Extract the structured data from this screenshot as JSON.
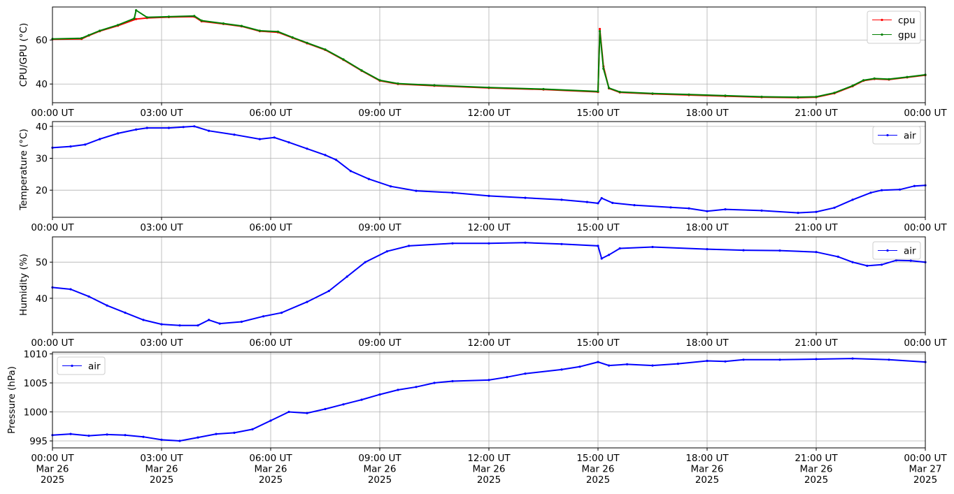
{
  "chart_data": [
    {
      "type": "line",
      "ylabel": "CPU/GPU (°C)",
      "ylim": [
        31.5,
        75
      ],
      "yticks": [
        40,
        60
      ],
      "xlim_hours": [
        0,
        24
      ],
      "xtick_labels": [
        "00:00 UT",
        "03:00 UT",
        "06:00 UT",
        "09:00 UT",
        "12:00 UT",
        "15:00 UT",
        "18:00 UT",
        "21:00 UT",
        "00:00 UT"
      ],
      "grid": true,
      "legend_position": "top-right",
      "series": [
        {
          "name": "cpu",
          "color": "#ff0000",
          "points": [
            [
              0,
              60.3
            ],
            [
              0.8,
              60.5
            ],
            [
              1.0,
              62
            ],
            [
              1.3,
              64
            ],
            [
              1.8,
              66.5
            ],
            [
              2.3,
              69.5
            ],
            [
              2.6,
              70
            ],
            [
              3.2,
              70.4
            ],
            [
              3.9,
              70.6
            ],
            [
              4.1,
              68.5
            ],
            [
              4.7,
              67.3
            ],
            [
              5.2,
              66.2
            ],
            [
              5.7,
              64
            ],
            [
              6.2,
              63.5
            ],
            [
              6.6,
              61
            ],
            [
              7.0,
              58.5
            ],
            [
              7.5,
              55.5
            ],
            [
              8.0,
              51
            ],
            [
              8.5,
              46
            ],
            [
              9.0,
              41.5
            ],
            [
              9.5,
              40
            ],
            [
              10.5,
              39.2
            ],
            [
              12,
              38.2
            ],
            [
              13.5,
              37.5
            ],
            [
              15.0,
              36.4
            ],
            [
              15.05,
              65
            ],
            [
              15.15,
              48
            ],
            [
              15.3,
              38
            ],
            [
              15.6,
              36.2
            ],
            [
              16.5,
              35.5
            ],
            [
              17.5,
              35
            ],
            [
              18.5,
              34.5
            ],
            [
              19.5,
              34
            ],
            [
              20.5,
              33.8
            ],
            [
              21.0,
              34
            ],
            [
              21.5,
              35.8
            ],
            [
              22.0,
              39
            ],
            [
              22.3,
              41.5
            ],
            [
              22.6,
              42.3
            ],
            [
              23.0,
              42
            ],
            [
              23.5,
              43
            ],
            [
              24.0,
              44
            ]
          ]
        },
        {
          "name": "gpu",
          "color": "#008000",
          "points": [
            [
              0,
              60.5
            ],
            [
              0.8,
              60.8
            ],
            [
              1.0,
              62.2
            ],
            [
              1.3,
              64.2
            ],
            [
              1.8,
              66.8
            ],
            [
              2.25,
              69.8
            ],
            [
              2.3,
              73.5
            ],
            [
              2.6,
              70.3
            ],
            [
              3.2,
              70.6
            ],
            [
              3.9,
              70.9
            ],
            [
              4.1,
              68.8
            ],
            [
              4.7,
              67.5
            ],
            [
              5.2,
              66.4
            ],
            [
              5.7,
              64.2
            ],
            [
              6.2,
              63.8
            ],
            [
              6.6,
              61.2
            ],
            [
              7.0,
              58.7
            ],
            [
              7.5,
              55.7
            ],
            [
              8.0,
              51.2
            ],
            [
              8.5,
              46.2
            ],
            [
              9.0,
              41.7
            ],
            [
              9.5,
              40.2
            ],
            [
              10.5,
              39.4
            ],
            [
              12,
              38.4
            ],
            [
              13.5,
              37.7
            ],
            [
              15.0,
              36.6
            ],
            [
              15.05,
              64
            ],
            [
              15.15,
              47
            ],
            [
              15.3,
              38.2
            ],
            [
              15.6,
              36.4
            ],
            [
              16.5,
              35.7
            ],
            [
              17.5,
              35.2
            ],
            [
              18.5,
              34.7
            ],
            [
              19.5,
              34.2
            ],
            [
              20.5,
              34
            ],
            [
              21.0,
              34.2
            ],
            [
              21.5,
              36
            ],
            [
              22.0,
              39.2
            ],
            [
              22.3,
              41.7
            ],
            [
              22.6,
              42.5
            ],
            [
              23.0,
              42.2
            ],
            [
              23.5,
              43.2
            ],
            [
              24.0,
              44.2
            ]
          ]
        }
      ]
    },
    {
      "type": "line",
      "ylabel": "Temperature (°C)",
      "ylim": [
        11.5,
        41.5
      ],
      "yticks": [
        20,
        30,
        40
      ],
      "xlim_hours": [
        0,
        24
      ],
      "xtick_labels": [
        "00:00 UT",
        "03:00 UT",
        "06:00 UT",
        "09:00 UT",
        "12:00 UT",
        "15:00 UT",
        "18:00 UT",
        "21:00 UT",
        "00:00 UT"
      ],
      "grid": true,
      "legend_position": "top-right",
      "series": [
        {
          "name": "air",
          "color": "#0000ff",
          "points": [
            [
              0,
              33.3
            ],
            [
              0.5,
              33.7
            ],
            [
              0.9,
              34.3
            ],
            [
              1.3,
              36
            ],
            [
              1.8,
              37.8
            ],
            [
              2.3,
              39
            ],
            [
              2.6,
              39.5
            ],
            [
              3.2,
              39.5
            ],
            [
              3.6,
              39.8
            ],
            [
              3.9,
              40
            ],
            [
              4.3,
              38.6
            ],
            [
              5.0,
              37.4
            ],
            [
              5.7,
              36
            ],
            [
              6.1,
              36.5
            ],
            [
              6.5,
              35
            ],
            [
              7.0,
              33
            ],
            [
              7.5,
              31
            ],
            [
              7.8,
              29.5
            ],
            [
              8.2,
              26
            ],
            [
              8.7,
              23.5
            ],
            [
              9.3,
              21.2
            ],
            [
              10.0,
              19.8
            ],
            [
              11,
              19.2
            ],
            [
              12,
              18.2
            ],
            [
              13,
              17.6
            ],
            [
              14,
              17
            ],
            [
              14.7,
              16.3
            ],
            [
              15.0,
              15.9
            ],
            [
              15.1,
              17.5
            ],
            [
              15.4,
              16
            ],
            [
              16,
              15.3
            ],
            [
              17,
              14.6
            ],
            [
              17.5,
              14.3
            ],
            [
              18,
              13.4
            ],
            [
              18.5,
              14
            ],
            [
              19.5,
              13.6
            ],
            [
              20.5,
              12.9
            ],
            [
              21.0,
              13.2
            ],
            [
              21.5,
              14.5
            ],
            [
              22.0,
              17
            ],
            [
              22.5,
              19.2
            ],
            [
              22.8,
              20
            ],
            [
              23.3,
              20.2
            ],
            [
              23.7,
              21.3
            ],
            [
              24,
              21.5
            ]
          ]
        }
      ]
    },
    {
      "type": "line",
      "ylabel": "Humidity (%)",
      "ylim": [
        30.5,
        57
      ],
      "yticks": [
        40,
        50
      ],
      "xlim_hours": [
        0,
        24
      ],
      "xtick_labels": [
        "00:00 UT",
        "03:00 UT",
        "06:00 UT",
        "09:00 UT",
        "12:00 UT",
        "15:00 UT",
        "18:00 UT",
        "21:00 UT",
        "00:00 UT"
      ],
      "grid": true,
      "legend_position": "top-right",
      "series": [
        {
          "name": "air",
          "color": "#0000ff",
          "points": [
            [
              0,
              43
            ],
            [
              0.5,
              42.5
            ],
            [
              1.0,
              40.5
            ],
            [
              1.5,
              38
            ],
            [
              2.0,
              36
            ],
            [
              2.5,
              34
            ],
            [
              3.0,
              32.8
            ],
            [
              3.5,
              32.5
            ],
            [
              4.0,
              32.5
            ],
            [
              4.3,
              34
            ],
            [
              4.6,
              33
            ],
            [
              5.2,
              33.5
            ],
            [
              5.8,
              35
            ],
            [
              6.3,
              36
            ],
            [
              7.0,
              39
            ],
            [
              7.6,
              42
            ],
            [
              8.1,
              46
            ],
            [
              8.6,
              50
            ],
            [
              9.2,
              53
            ],
            [
              9.8,
              54.5
            ],
            [
              11,
              55.2
            ],
            [
              12,
              55.2
            ],
            [
              13,
              55.4
            ],
            [
              14,
              55
            ],
            [
              15.0,
              54.5
            ],
            [
              15.1,
              51
            ],
            [
              15.3,
              52
            ],
            [
              15.6,
              53.8
            ],
            [
              16.5,
              54.2
            ],
            [
              18,
              53.6
            ],
            [
              19,
              53.3
            ],
            [
              20,
              53.2
            ],
            [
              21.0,
              52.8
            ],
            [
              21.6,
              51.5
            ],
            [
              22,
              50
            ],
            [
              22.4,
              49
            ],
            [
              22.8,
              49.3
            ],
            [
              23.2,
              50.5
            ],
            [
              23.6,
              50.4
            ],
            [
              24,
              50
            ]
          ]
        }
      ]
    },
    {
      "type": "line",
      "ylabel": "Pressure (hPa)",
      "ylim": [
        993.8,
        1010.3
      ],
      "yticks": [
        995,
        1000,
        1005,
        1010
      ],
      "xlim_hours": [
        0,
        24
      ],
      "xtick_labels": [
        "00:00 UT\nMar 26\n2025",
        "03:00 UT\nMar 26\n2025",
        "06:00 UT\nMar 26\n2025",
        "09:00 UT\nMar 26\n2025",
        "12:00 UT\nMar 26\n2025",
        "15:00 UT\nMar 26\n2025",
        "18:00 UT\nMar 26\n2025",
        "21:00 UT\nMar 26\n2025",
        "00:00 UT\nMar 27\n2025"
      ],
      "grid": true,
      "legend_position": "top-left",
      "series": [
        {
          "name": "air",
          "color": "#0000ff",
          "points": [
            [
              0,
              996
            ],
            [
              0.5,
              996.2
            ],
            [
              1,
              995.9
            ],
            [
              1.5,
              996.1
            ],
            [
              2,
              996
            ],
            [
              2.5,
              995.7
            ],
            [
              3,
              995.2
            ],
            [
              3.5,
              995
            ],
            [
              4,
              995.6
            ],
            [
              4.5,
              996.2
            ],
            [
              5,
              996.4
            ],
            [
              5.5,
              997
            ],
            [
              6,
              998.5
            ],
            [
              6.5,
              1000
            ],
            [
              7,
              999.8
            ],
            [
              7.5,
              1000.5
            ],
            [
              8,
              1001.3
            ],
            [
              8.5,
              1002.1
            ],
            [
              9,
              1003
            ],
            [
              9.5,
              1003.8
            ],
            [
              10,
              1004.3
            ],
            [
              10.5,
              1005
            ],
            [
              11,
              1005.3
            ],
            [
              12,
              1005.5
            ],
            [
              12.5,
              1006
            ],
            [
              13,
              1006.6
            ],
            [
              14,
              1007.3
            ],
            [
              14.5,
              1007.8
            ],
            [
              15,
              1008.6
            ],
            [
              15.3,
              1008
            ],
            [
              15.8,
              1008.2
            ],
            [
              16.5,
              1008
            ],
            [
              17.2,
              1008.3
            ],
            [
              18,
              1008.8
            ],
            [
              18.5,
              1008.7
            ],
            [
              19,
              1009
            ],
            [
              20,
              1009
            ],
            [
              21,
              1009.1
            ],
            [
              22,
              1009.2
            ],
            [
              23,
              1009
            ],
            [
              24,
              1008.6
            ]
          ]
        }
      ]
    }
  ]
}
